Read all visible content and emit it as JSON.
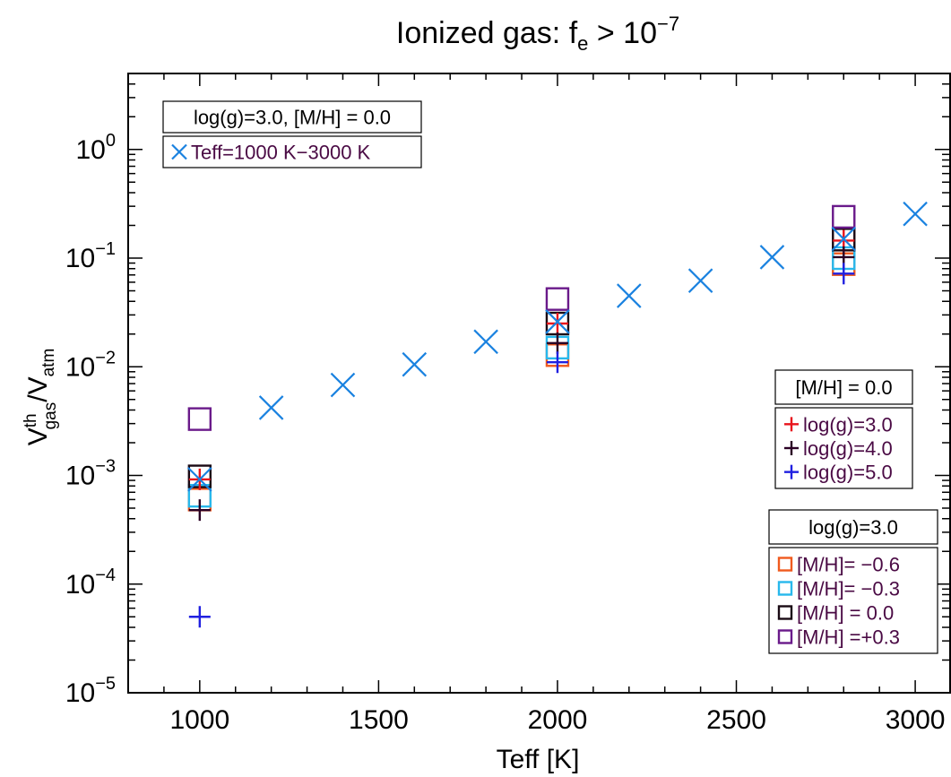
{
  "chart_data": {
    "type": "scatter",
    "title": {
      "main": "Ionized gas: f",
      "sub": "e",
      "rel": " > 10",
      "sup": "−7"
    },
    "xlabel": "Teff [K]",
    "ylabel": {
      "main": "V",
      "sup": "th",
      "sub": "gas",
      "sep": "/V",
      "sub2": "atm"
    },
    "xlim": [
      800,
      3100
    ],
    "ylim": [
      1e-05,
      5
    ],
    "yscale": "log",
    "grid": false,
    "x_ticks": [
      1000,
      1500,
      2000,
      2500,
      3000
    ],
    "x_tick_labels": [
      "1000",
      "1500",
      "2000",
      "2500",
      "3000"
    ],
    "y_ticks": [
      {
        "value": 1,
        "base": "10",
        "exp": "0"
      },
      {
        "value": 0.1,
        "base": "10",
        "exp": "−1"
      },
      {
        "value": 0.01,
        "base": "10",
        "exp": "−2"
      },
      {
        "value": 0.001,
        "base": "10",
        "exp": "−3"
      },
      {
        "value": 0.0001,
        "base": "10",
        "exp": "−4"
      },
      {
        "value": 1e-05,
        "base": "10",
        "exp": "−5"
      }
    ],
    "series": [
      {
        "name": "Teff=1000 K−3000 K",
        "marker": "x",
        "color": "#1a82e0",
        "x": [
          1000,
          1200,
          1400,
          1600,
          1800,
          2000,
          2200,
          2400,
          2600,
          2800,
          3000
        ],
        "y": [
          0.00092,
          0.0042,
          0.0068,
          0.0105,
          0.017,
          0.026,
          0.045,
          0.062,
          0.102,
          0.15,
          0.255
        ]
      },
      {
        "name": "log(g)=3.0",
        "marker": "+",
        "color": "#e8141c",
        "x": [
          1000,
          2000,
          2800
        ],
        "y": [
          0.00092,
          0.025,
          0.145
        ]
      },
      {
        "name": "log(g)=4.0",
        "marker": "+",
        "color": "#2a0024",
        "x": [
          1000,
          2000,
          2800
        ],
        "y": [
          0.00048,
          0.0165,
          0.102
        ]
      },
      {
        "name": "log(g)=5.0",
        "marker": "+",
        "color": "#2020e0",
        "x": [
          1000,
          2000,
          2800
        ],
        "y": [
          5e-05,
          0.011,
          0.072
        ]
      },
      {
        "name": "[M/H]= −0.6",
        "marker": "square",
        "color": "#f05a1e",
        "x": [
          1000,
          2000,
          2800
        ],
        "y": [
          0.0006,
          0.0128,
          0.088
        ]
      },
      {
        "name": "[M/H]= −0.3",
        "marker": "square",
        "color": "#28b8ec",
        "x": [
          1000,
          2000,
          2800
        ],
        "y": [
          0.00065,
          0.015,
          0.1
        ]
      },
      {
        "name": "[M/H] = 0.0",
        "marker": "square",
        "color": "#1a0a14",
        "x": [
          1000,
          2000,
          2800
        ],
        "y": [
          0.00098,
          0.025,
          0.148
        ]
      },
      {
        "name": "[M/H] =+0.3",
        "marker": "square",
        "color": "#6a1a8a",
        "x": [
          1000,
          2000,
          2800
        ],
        "y": [
          0.0033,
          0.042,
          0.24
        ]
      }
    ],
    "legends": [
      {
        "boxes": [
          {
            "entries": [
              {
                "text": "log(g)=3.0, [M/H] = 0.0",
                "marker": "none"
              }
            ]
          },
          {
            "entries": [
              {
                "text": "Teff=1000 K−3000 K",
                "marker": "x",
                "color": "#1a82e0",
                "text_color": "#4a0a44"
              }
            ]
          }
        ]
      },
      {
        "boxes": [
          {
            "entries": [
              {
                "text": "[M/H] = 0.0",
                "marker": "none"
              }
            ]
          },
          {
            "entries": [
              {
                "text": "log(g)=3.0",
                "marker": "+",
                "color": "#e8141c",
                "text_color": "#4a0a44"
              },
              {
                "text": "log(g)=4.0",
                "marker": "+",
                "color": "#2a0024",
                "text_color": "#4a0a44"
              },
              {
                "text": "log(g)=5.0",
                "marker": "+",
                "color": "#2020e0",
                "text_color": "#4a0a44"
              }
            ]
          }
        ]
      },
      {
        "boxes": [
          {
            "entries": [
              {
                "text": "log(g)=3.0",
                "marker": "none"
              }
            ]
          },
          {
            "entries": [
              {
                "text": "[M/H]= −0.6",
                "marker": "square",
                "color": "#f05a1e",
                "text_color": "#4a0a44"
              },
              {
                "text": "[M/H]= −0.3",
                "marker": "square",
                "color": "#28b8ec",
                "text_color": "#4a0a44"
              },
              {
                "text": "[M/H] = 0.0",
                "marker": "square",
                "color": "#1a0a14",
                "text_color": "#4a0a44"
              },
              {
                "text": "[M/H] =+0.3",
                "marker": "square",
                "color": "#6a1a8a",
                "text_color": "#4a0a44"
              }
            ]
          }
        ]
      }
    ]
  }
}
